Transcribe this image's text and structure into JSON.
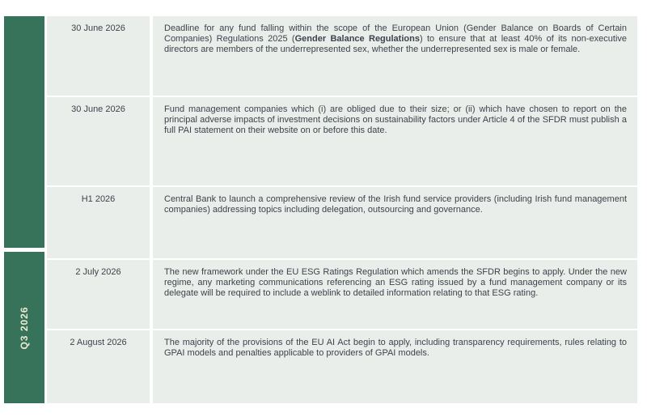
{
  "sidebar": {
    "q3_label": "Q3 2026"
  },
  "colors": {
    "quarter_block_green": "#36735A",
    "cell_background": "#E9EEEA",
    "body_text": "#3E424B",
    "quarter_label_text": "#EDEAD2"
  },
  "table": {
    "rows": [
      {
        "date": "30 June 2026",
        "desc_pre": "Deadline for any fund falling within the scope of the European Union (Gender Balance on Boards of Certain Companies) Regulations 2025 (",
        "desc_bold": "Gender Balance Regulations",
        "desc_post": ") to ensure that at least 40% of its non-executive directors are members of the underrepresented sex, whether the underrepresented sex is male or female."
      },
      {
        "date": "30 June 2026",
        "desc": "Fund management companies which (i) are obliged due to their size; or (ii) which have chosen to report on the principal adverse impacts of investment decisions on sustainability factors under Article 4 of the SFDR must publish a full PAI statement on their website on or before this date."
      },
      {
        "date": "H1 2026",
        "desc": "Central Bank to launch a comprehensive review of the Irish fund service providers (including Irish fund management companies) addressing topics including delegation, outsourcing and governance."
      },
      {
        "date": "2 July 2026",
        "desc": "The new framework under the EU ESG Ratings Regulation which amends the SFDR begins to apply. Under the new regime, any marketing communications referencing an ESG rating issued by a fund management company or its delegate will be required to include a weblink to detailed information relating to that ESG rating."
      },
      {
        "date": "2 August 2026",
        "desc": "The majority of the provisions of the EU AI Act begin to apply, including transparency requirements, rules relating to GPAI models and penalties applicable to providers of GPAI models."
      }
    ]
  }
}
